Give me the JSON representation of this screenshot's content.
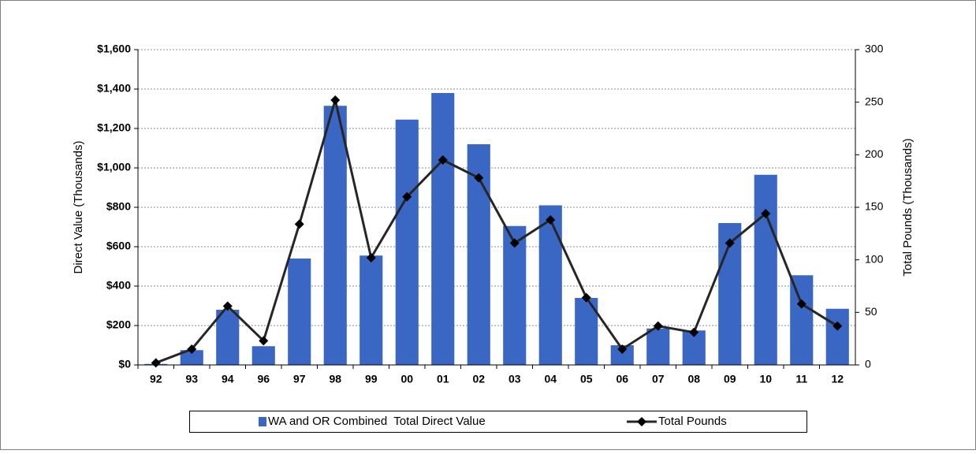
{
  "chart_data": {
    "type": "bar_line",
    "categories": [
      "92",
      "93",
      "94",
      "96",
      "97",
      "98",
      "99",
      "00",
      "01",
      "02",
      "03",
      "04",
      "05",
      "06",
      "07",
      "08",
      "09",
      "10",
      "11",
      "12"
    ],
    "series": [
      {
        "name": "WA and OR Combined  Total Direct Value",
        "type": "bar",
        "color": "#3a66c4",
        "values": [
          5,
          75,
          280,
          95,
          540,
          1315,
          555,
          1245,
          1380,
          1120,
          705,
          810,
          340,
          100,
          185,
          175,
          720,
          965,
          455,
          285
        ]
      },
      {
        "name": "Total Pounds",
        "type": "line",
        "axis": "y2",
        "color": "#262626",
        "values": [
          2,
          15,
          56,
          23,
          134,
          252,
          102,
          160,
          195,
          178,
          116,
          138,
          64,
          15,
          37,
          31,
          116,
          144,
          58,
          37
        ]
      }
    ],
    "ylabel": "Direct Value (Thousands)",
    "y2label": "Total Pounds (Thousands)",
    "ylim": [
      0,
      1600
    ],
    "yticks": [
      {
        "value": 0,
        "label": "$0"
      },
      {
        "value": 200,
        "label": "$200"
      },
      {
        "value": 400,
        "label": "$400"
      },
      {
        "value": 600,
        "label": "$600"
      },
      {
        "value": 800,
        "label": "$800"
      },
      {
        "value": 1000,
        "label": "$1,000"
      },
      {
        "value": 1200,
        "label": "$1,200"
      },
      {
        "value": 1400,
        "label": "$1,400"
      },
      {
        "value": 1600,
        "label": "$1,600"
      }
    ],
    "y2lim": [
      0,
      300
    ],
    "y2ticks": [
      0,
      50,
      100,
      150,
      200,
      250,
      300
    ],
    "grid": true,
    "legend": "bottom"
  }
}
